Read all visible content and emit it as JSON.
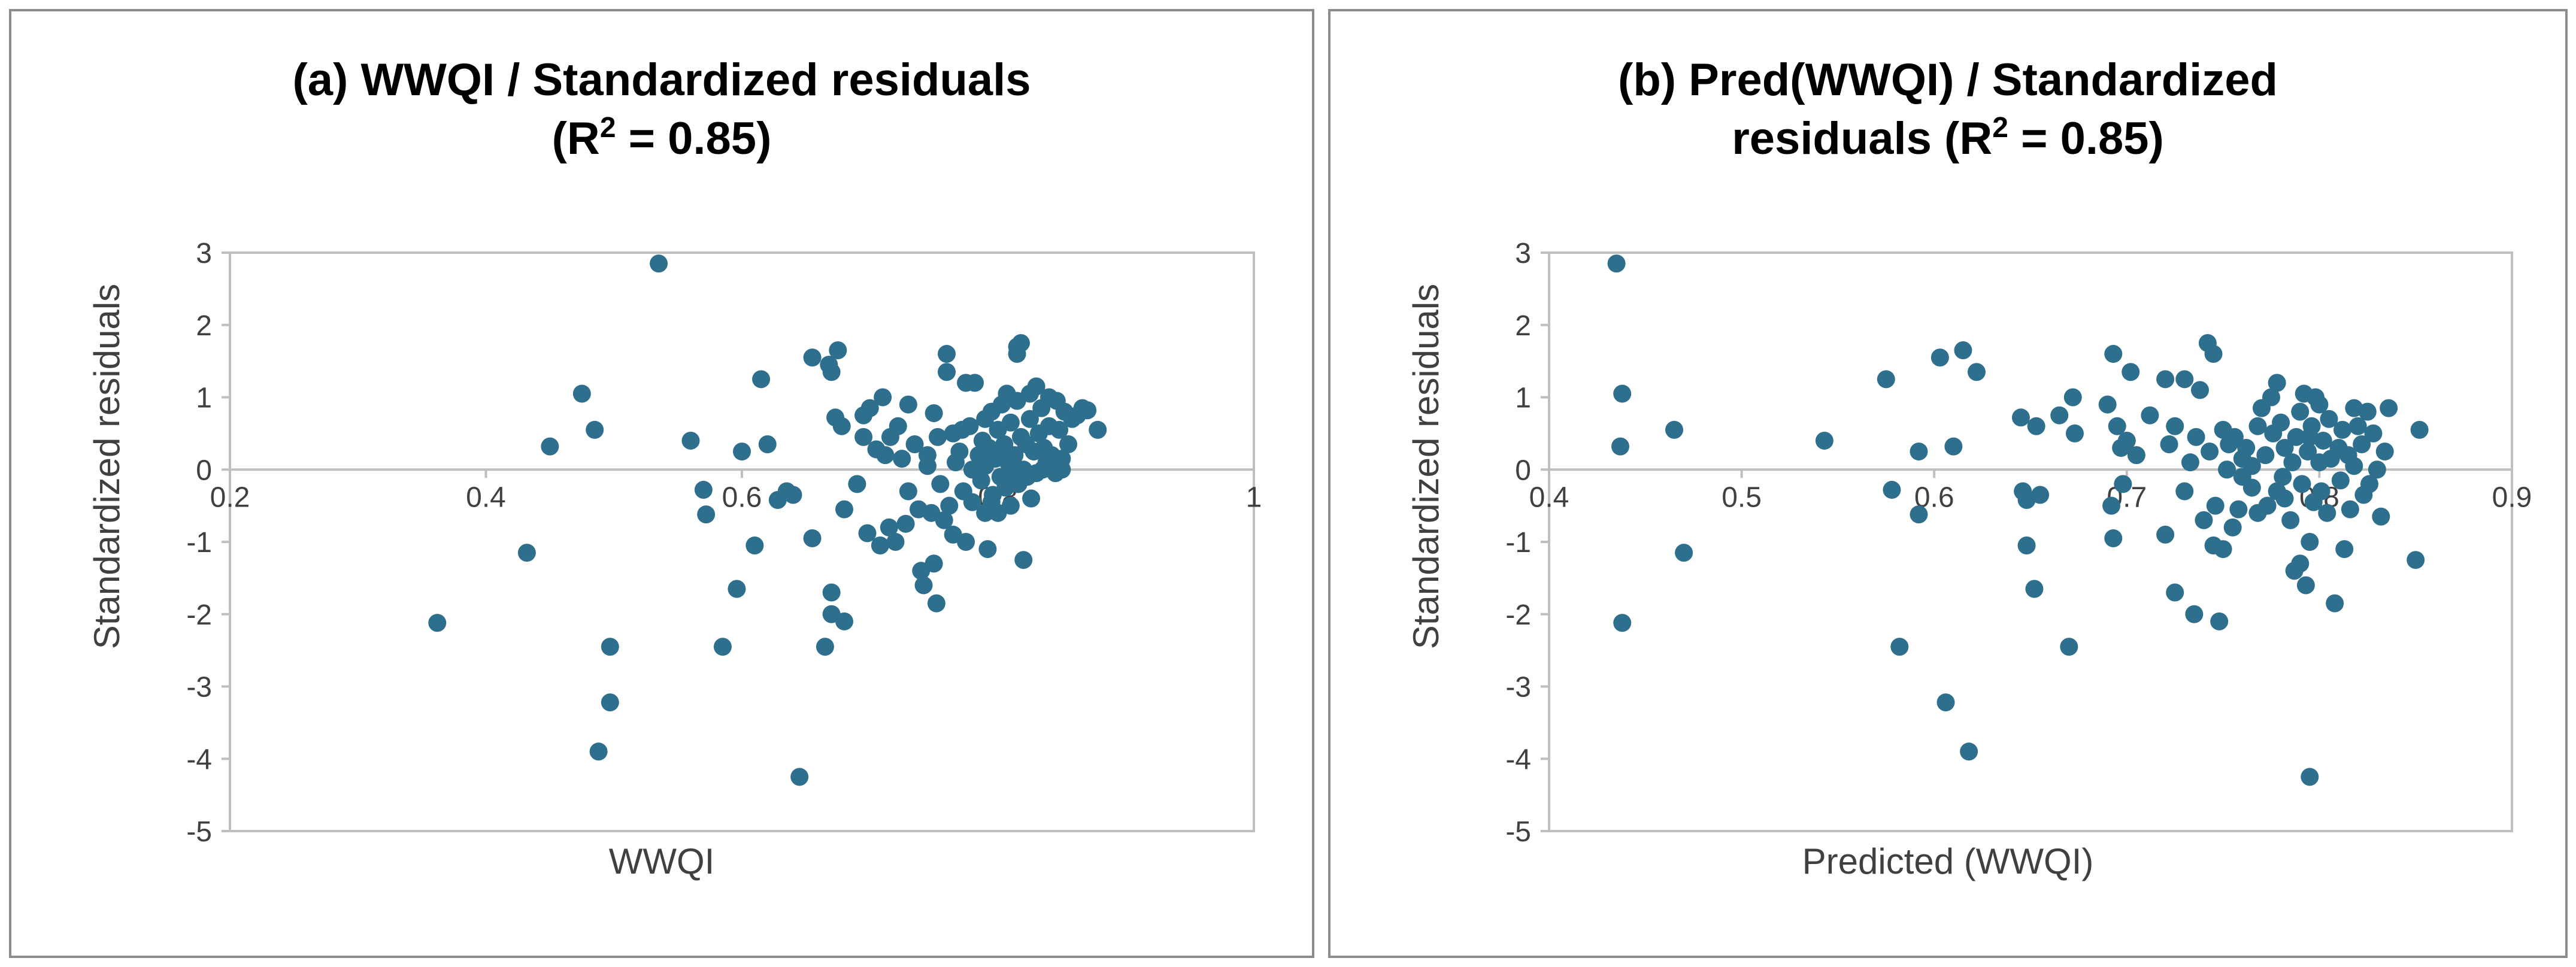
{
  "colors": {
    "marker": "#2e6f8e",
    "axis": "#bfbfbf",
    "border": "#8c8c8c",
    "text": "#404040"
  },
  "chart_data": [
    {
      "type": "scatter",
      "title_main": "(a) WWQI / Standardized residuals",
      "title_r2_prefix": "(R",
      "title_r2_sup": "2",
      "title_r2_suffix": " = 0.85)",
      "xlabel": "WWQI",
      "ylabel": "Standardized residuals",
      "xlim": [
        0.2,
        1.0
      ],
      "ylim": [
        -5,
        3
      ],
      "x_ticks": [
        "0.2",
        "0.4",
        "0.6",
        "0.8",
        "1"
      ],
      "y_ticks": [
        "-5",
        "-4",
        "-3",
        "-2",
        "-1",
        "0",
        "1",
        "2",
        "3"
      ],
      "points": [
        [
          0.362,
          -2.12
        ],
        [
          0.432,
          -1.15
        ],
        [
          0.45,
          0.32
        ],
        [
          0.475,
          1.05
        ],
        [
          0.485,
          0.55
        ],
        [
          0.488,
          -3.9
        ],
        [
          0.497,
          -2.45
        ],
        [
          0.497,
          -3.22
        ],
        [
          0.535,
          2.85
        ],
        [
          0.56,
          0.4
        ],
        [
          0.57,
          -0.28
        ],
        [
          0.572,
          -0.62
        ],
        [
          0.585,
          -2.45
        ],
        [
          0.596,
          -1.65
        ],
        [
          0.6,
          0.25
        ],
        [
          0.61,
          -1.05
        ],
        [
          0.615,
          1.25
        ],
        [
          0.62,
          0.35
        ],
        [
          0.628,
          -0.42
        ],
        [
          0.635,
          -0.3
        ],
        [
          0.64,
          -0.35
        ],
        [
          0.645,
          -4.25
        ],
        [
          0.655,
          1.55
        ],
        [
          0.655,
          -0.95
        ],
        [
          0.665,
          -2.45
        ],
        [
          0.668,
          1.45
        ],
        [
          0.67,
          1.35
        ],
        [
          0.67,
          -1.7
        ],
        [
          0.67,
          -2.0
        ],
        [
          0.673,
          0.72
        ],
        [
          0.675,
          1.65
        ],
        [
          0.678,
          0.6
        ],
        [
          0.68,
          -2.1
        ],
        [
          0.68,
          -0.55
        ],
        [
          0.69,
          -0.2
        ],
        [
          0.695,
          0.75
        ],
        [
          0.695,
          0.45
        ],
        [
          0.698,
          -0.88
        ],
        [
          0.7,
          0.85
        ],
        [
          0.705,
          0.28
        ],
        [
          0.708,
          -1.05
        ],
        [
          0.71,
          1.0
        ],
        [
          0.712,
          0.2
        ],
        [
          0.715,
          -0.8
        ],
        [
          0.716,
          0.45
        ],
        [
          0.72,
          -1.0
        ],
        [
          0.722,
          0.6
        ],
        [
          0.725,
          0.15
        ],
        [
          0.728,
          -0.75
        ],
        [
          0.73,
          0.9
        ],
        [
          0.73,
          -0.3
        ],
        [
          0.735,
          0.35
        ],
        [
          0.738,
          -0.55
        ],
        [
          0.74,
          -1.4
        ],
        [
          0.742,
          -1.6
        ],
        [
          0.745,
          0.2
        ],
        [
          0.745,
          0.05
        ],
        [
          0.748,
          -0.6
        ],
        [
          0.75,
          -1.3
        ],
        [
          0.75,
          0.78
        ],
        [
          0.752,
          -1.85
        ],
        [
          0.753,
          0.45
        ],
        [
          0.755,
          -0.2
        ],
        [
          0.758,
          -0.7
        ],
        [
          0.76,
          1.6
        ],
        [
          0.76,
          1.35
        ],
        [
          0.762,
          -0.5
        ],
        [
          0.765,
          0.5
        ],
        [
          0.765,
          -0.9
        ],
        [
          0.767,
          0.1
        ],
        [
          0.77,
          0.25
        ],
        [
          0.772,
          0.55
        ],
        [
          0.773,
          -0.3
        ],
        [
          0.775,
          -1.0
        ],
        [
          0.775,
          1.2
        ],
        [
          0.778,
          0.6
        ],
        [
          0.78,
          0.0
        ],
        [
          0.78,
          -0.45
        ],
        [
          0.782,
          1.2
        ],
        [
          0.785,
          0.2
        ],
        [
          0.787,
          -0.15
        ],
        [
          0.788,
          0.4
        ],
        [
          0.79,
          -0.6
        ],
        [
          0.79,
          0.05
        ],
        [
          0.792,
          -1.1
        ],
        [
          0.793,
          0.3
        ],
        [
          0.795,
          0.8
        ],
        [
          0.796,
          -0.35
        ],
        [
          0.798,
          0.15
        ],
        [
          0.8,
          0.55
        ],
        [
          0.8,
          -0.6
        ],
        [
          0.802,
          -0.1
        ],
        [
          0.803,
          0.9
        ],
        [
          0.805,
          0.35
        ],
        [
          0.806,
          -0.25
        ],
        [
          0.807,
          1.05
        ],
        [
          0.808,
          0.1
        ],
        [
          0.81,
          -0.5
        ],
        [
          0.81,
          0.65
        ],
        [
          0.812,
          -0.05
        ],
        [
          0.813,
          0.2
        ],
        [
          0.815,
          1.7
        ],
        [
          0.815,
          1.6
        ],
        [
          0.816,
          -0.2
        ],
        [
          0.818,
          0.45
        ],
        [
          0.818,
          1.75
        ],
        [
          0.82,
          -1.25
        ],
        [
          0.82,
          0.0
        ],
        [
          0.822,
          0.35
        ],
        [
          0.823,
          -0.1
        ],
        [
          0.825,
          0.7
        ],
        [
          0.826,
          -0.4
        ],
        [
          0.828,
          0.25
        ],
        [
          0.83,
          1.15
        ],
        [
          0.83,
          -0.05
        ],
        [
          0.832,
          0.5
        ],
        [
          0.834,
          0.85
        ],
        [
          0.835,
          0.0
        ],
        [
          0.836,
          0.3
        ],
        [
          0.838,
          0.1
        ],
        [
          0.84,
          1.0
        ],
        [
          0.84,
          0.6
        ],
        [
          0.842,
          0.2
        ],
        [
          0.845,
          -0.05
        ],
        [
          0.846,
          0.95
        ],
        [
          0.848,
          0.55
        ],
        [
          0.85,
          0.15
        ],
        [
          0.85,
          0.0
        ],
        [
          0.852,
          0.8
        ],
        [
          0.855,
          0.35
        ],
        [
          0.858,
          0.7
        ],
        [
          0.862,
          0.75
        ],
        [
          0.866,
          0.85
        ],
        [
          0.87,
          0.82
        ],
        [
          0.878,
          0.55
        ],
        [
          0.815,
          0.95
        ],
        [
          0.825,
          1.05
        ],
        [
          0.8,
          0.25
        ],
        [
          0.79,
          0.7
        ],
        [
          0.795,
          -0.45
        ],
        [
          0.805,
          -0.15
        ]
      ]
    },
    {
      "type": "scatter",
      "title_main": "(b) Pred(WWQI) / Standardized",
      "title_r2_prefix": "residuals (R",
      "title_r2_sup": "2",
      "title_r2_suffix": " = 0.85)",
      "xlabel": "Predicted (WWQI)",
      "ylabel": "Standardized residuals",
      "xlim": [
        0.4,
        0.9
      ],
      "ylim": [
        -5,
        3
      ],
      "x_ticks": [
        "0.4",
        "0.5",
        "0.6",
        "0.7",
        "0.8",
        "0.9"
      ],
      "y_ticks": [
        "-5",
        "-4",
        "-3",
        "-2",
        "-1",
        "0",
        "1",
        "2",
        "3"
      ],
      "points": [
        [
          0.435,
          2.85
        ],
        [
          0.437,
          0.32
        ],
        [
          0.438,
          1.05
        ],
        [
          0.438,
          -2.12
        ],
        [
          0.465,
          0.55
        ],
        [
          0.47,
          -1.15
        ],
        [
          0.543,
          0.4
        ],
        [
          0.575,
          1.25
        ],
        [
          0.578,
          -0.28
        ],
        [
          0.582,
          -2.45
        ],
        [
          0.592,
          0.25
        ],
        [
          0.592,
          -0.62
        ],
        [
          0.603,
          1.55
        ],
        [
          0.606,
          -3.22
        ],
        [
          0.61,
          0.32
        ],
        [
          0.615,
          1.65
        ],
        [
          0.618,
          -3.9
        ],
        [
          0.622,
          1.35
        ],
        [
          0.645,
          0.72
        ],
        [
          0.646,
          -0.3
        ],
        [
          0.648,
          -1.05
        ],
        [
          0.648,
          -0.42
        ],
        [
          0.652,
          -1.65
        ],
        [
          0.653,
          0.6
        ],
        [
          0.655,
          -0.35
        ],
        [
          0.665,
          0.75
        ],
        [
          0.67,
          -2.45
        ],
        [
          0.672,
          1.0
        ],
        [
          0.673,
          0.5
        ],
        [
          0.69,
          0.9
        ],
        [
          0.692,
          -0.5
        ],
        [
          0.693,
          -0.95
        ],
        [
          0.693,
          1.6
        ],
        [
          0.695,
          0.6
        ],
        [
          0.697,
          0.3
        ],
        [
          0.698,
          -0.2
        ],
        [
          0.7,
          0.4
        ],
        [
          0.702,
          1.35
        ],
        [
          0.705,
          0.2
        ],
        [
          0.712,
          0.75
        ],
        [
          0.72,
          1.25
        ],
        [
          0.72,
          -0.9
        ],
        [
          0.722,
          0.35
        ],
        [
          0.725,
          -1.7
        ],
        [
          0.725,
          0.6
        ],
        [
          0.73,
          1.25
        ],
        [
          0.73,
          -0.3
        ],
        [
          0.733,
          0.1
        ],
        [
          0.735,
          -2.0
        ],
        [
          0.736,
          0.45
        ],
        [
          0.738,
          1.1
        ],
        [
          0.74,
          -0.7
        ],
        [
          0.742,
          1.75
        ],
        [
          0.743,
          0.25
        ],
        [
          0.745,
          -1.05
        ],
        [
          0.745,
          1.6
        ],
        [
          0.746,
          -0.5
        ],
        [
          0.748,
          -2.1
        ],
        [
          0.75,
          0.55
        ],
        [
          0.75,
          -1.1
        ],
        [
          0.752,
          0.0
        ],
        [
          0.753,
          0.35
        ],
        [
          0.755,
          -0.8
        ],
        [
          0.756,
          0.45
        ],
        [
          0.758,
          -0.55
        ],
        [
          0.76,
          0.15
        ],
        [
          0.762,
          0.3
        ],
        [
          0.765,
          -0.25
        ],
        [
          0.765,
          0.05
        ],
        [
          0.768,
          -0.6
        ],
        [
          0.77,
          0.85
        ],
        [
          0.772,
          0.2
        ],
        [
          0.773,
          -0.5
        ],
        [
          0.775,
          1.0
        ],
        [
          0.776,
          0.5
        ],
        [
          0.778,
          -0.3
        ],
        [
          0.778,
          1.2
        ],
        [
          0.78,
          0.65
        ],
        [
          0.781,
          -0.1
        ],
        [
          0.782,
          0.3
        ],
        [
          0.785,
          -0.7
        ],
        [
          0.786,
          0.1
        ],
        [
          0.787,
          -1.4
        ],
        [
          0.788,
          0.45
        ],
        [
          0.79,
          -1.3
        ],
        [
          0.79,
          0.8
        ],
        [
          0.791,
          -0.2
        ],
        [
          0.792,
          1.05
        ],
        [
          0.793,
          -1.6
        ],
        [
          0.794,
          0.25
        ],
        [
          0.795,
          -4.25
        ],
        [
          0.795,
          -1.0
        ],
        [
          0.796,
          0.6
        ],
        [
          0.797,
          -0.45
        ],
        [
          0.798,
          1.0
        ],
        [
          0.8,
          0.1
        ],
        [
          0.8,
          0.9
        ],
        [
          0.801,
          -0.3
        ],
        [
          0.802,
          0.4
        ],
        [
          0.804,
          -0.6
        ],
        [
          0.805,
          0.7
        ],
        [
          0.806,
          0.15
        ],
        [
          0.808,
          -1.85
        ],
        [
          0.81,
          0.3
        ],
        [
          0.811,
          -0.15
        ],
        [
          0.812,
          0.55
        ],
        [
          0.813,
          -1.1
        ],
        [
          0.815,
          0.2
        ],
        [
          0.816,
          -0.55
        ],
        [
          0.818,
          0.05
        ],
        [
          0.82,
          0.6
        ],
        [
          0.822,
          0.35
        ],
        [
          0.823,
          -0.35
        ],
        [
          0.825,
          0.8
        ],
        [
          0.826,
          -0.2
        ],
        [
          0.828,
          0.5
        ],
        [
          0.83,
          0.0
        ],
        [
          0.832,
          -0.65
        ],
        [
          0.834,
          0.25
        ],
        [
          0.836,
          0.85
        ],
        [
          0.85,
          -1.25
        ],
        [
          0.852,
          0.55
        ],
        [
          0.795,
          0.45
        ],
        [
          0.782,
          -0.4
        ],
        [
          0.768,
          0.6
        ],
        [
          0.76,
          -0.1
        ],
        [
          0.818,
          0.85
        ]
      ]
    }
  ]
}
